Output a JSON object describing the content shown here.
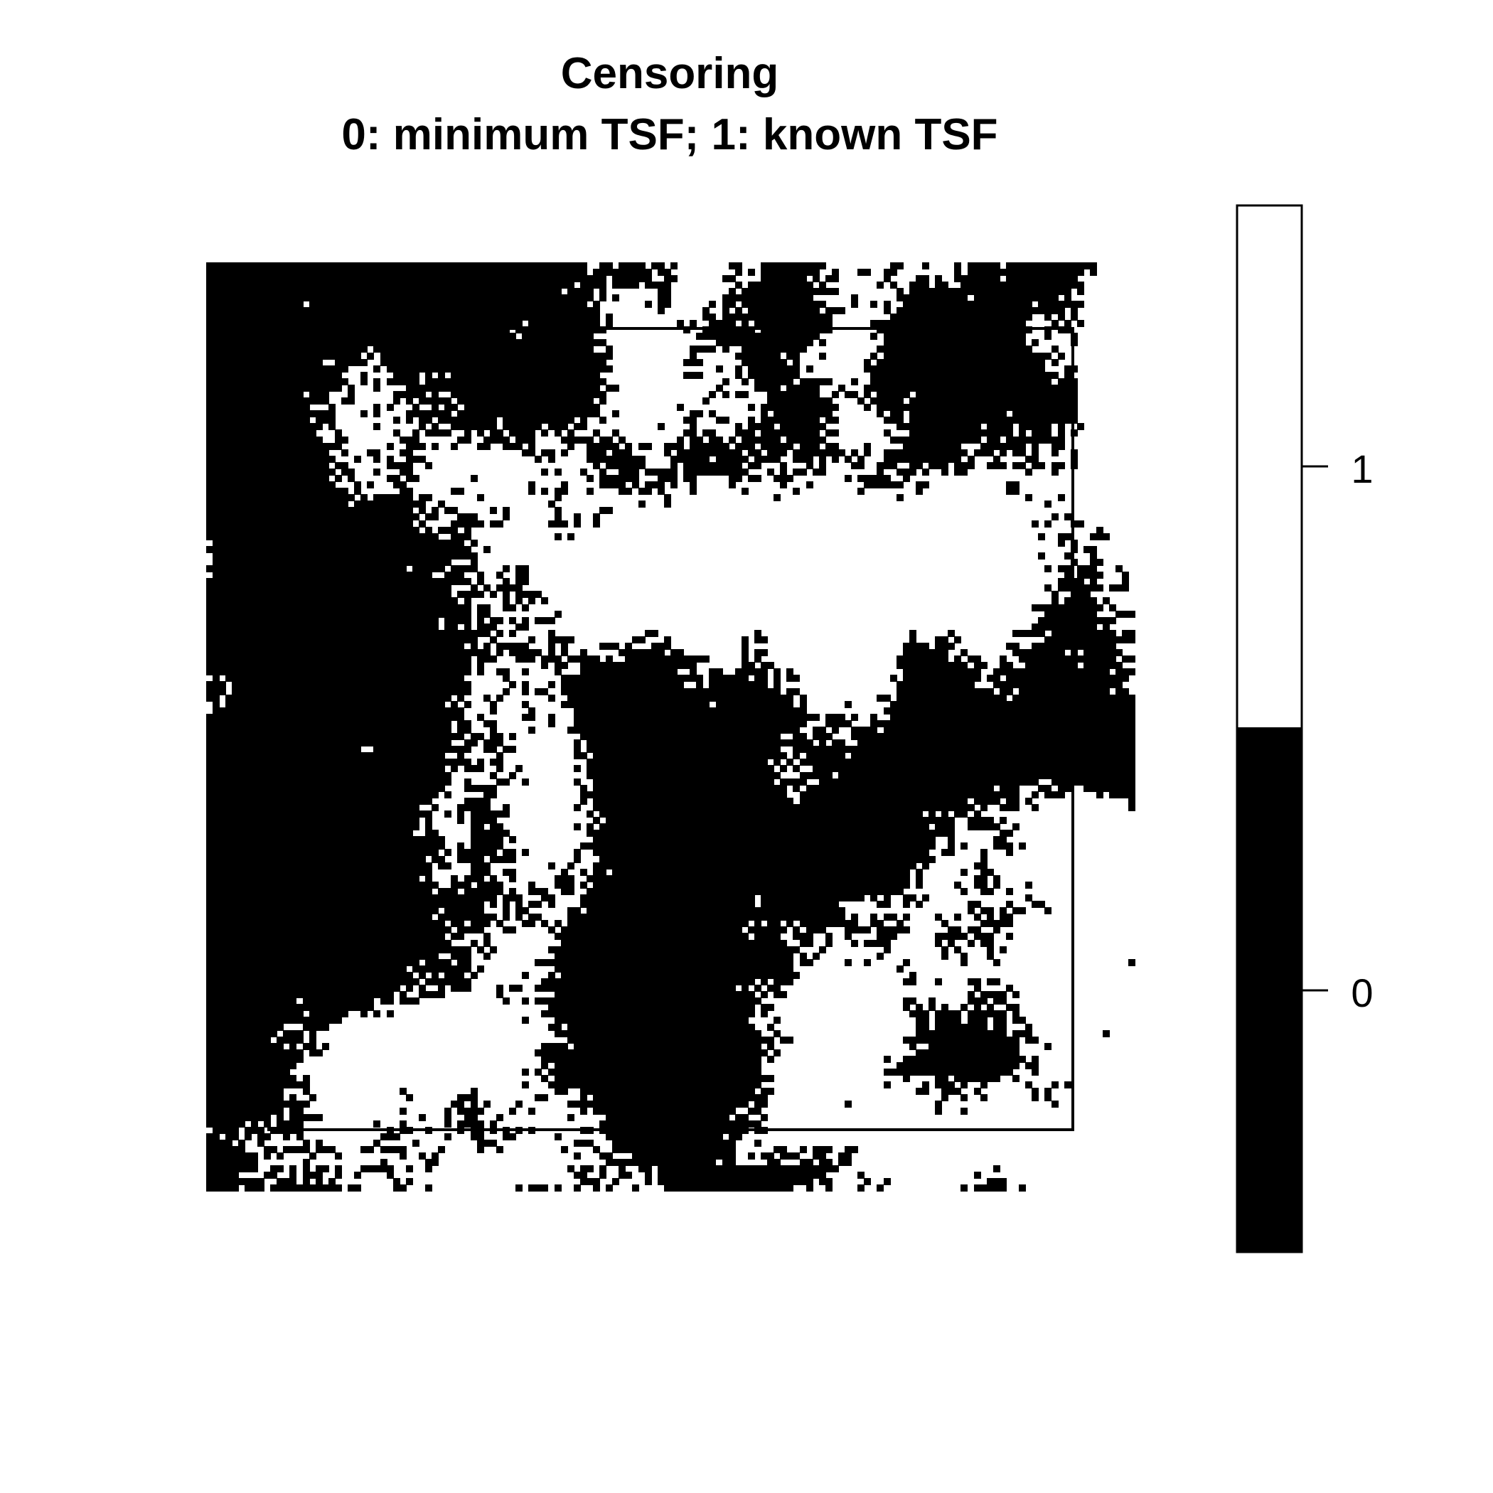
{
  "colors": {
    "value_0": "#000000",
    "value_1": "#ffffff",
    "frame": "#000000"
  },
  "chart_data": {
    "type": "heatmap",
    "title": "Censoring",
    "subtitle": "0: minimum TSF; 1: known TSF",
    "xlabel": "",
    "ylabel": "",
    "grid": false,
    "values_domain": [
      0,
      1
    ],
    "legend": {
      "placement": "right",
      "type": "colorbar",
      "entries": [
        {
          "value": 0,
          "label": "0",
          "color": "#000000"
        },
        {
          "value": 1,
          "label": "1",
          "color": "#ffffff"
        }
      ],
      "ticks": [
        "0",
        "1"
      ]
    },
    "grid_cells": {
      "rows": 144,
      "cols": 144
    },
    "inner_boundary": {
      "present": true,
      "description": "inner rectangle outline drawn over the raster"
    }
  }
}
